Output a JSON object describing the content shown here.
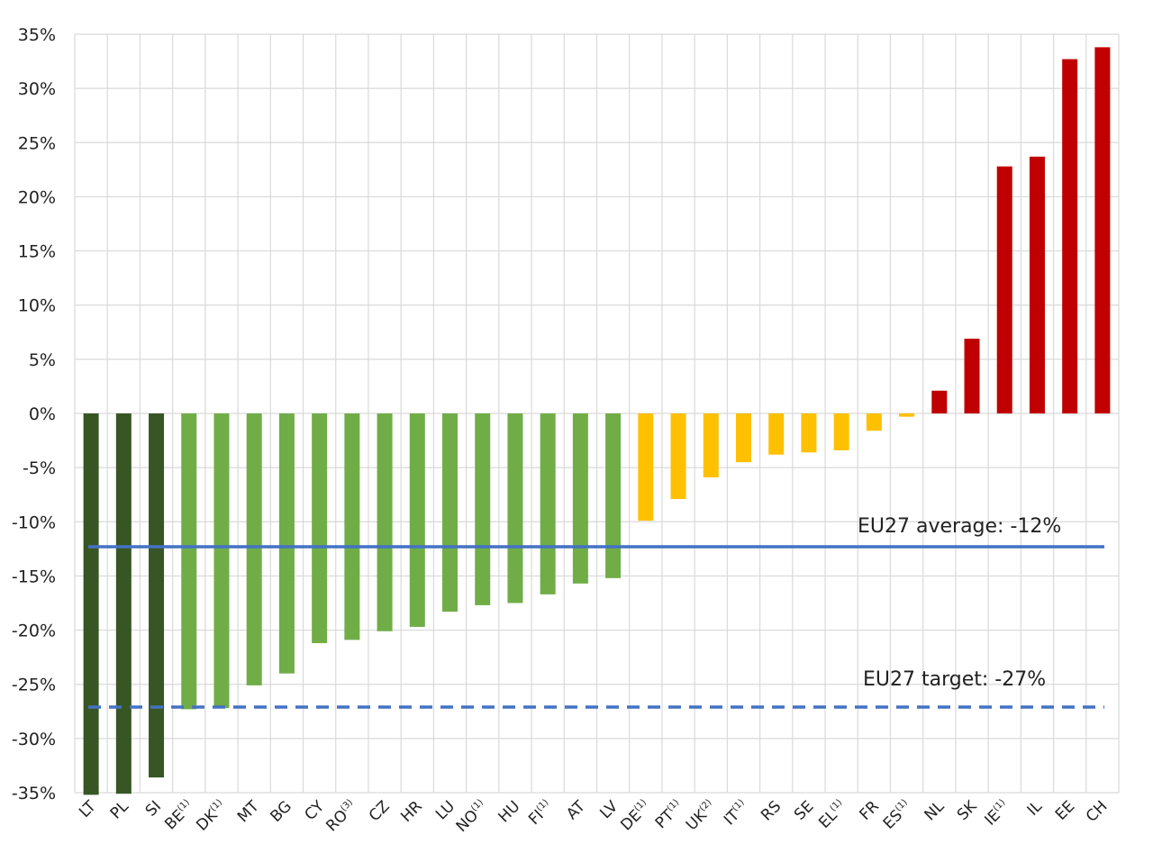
{
  "chart_data": {
    "type": "bar",
    "title": "",
    "xlabel": "",
    "ylabel": "",
    "ylim": [
      -35,
      35
    ],
    "y_ticks": [
      35,
      30,
      25,
      20,
      15,
      10,
      5,
      0,
      -5,
      -10,
      -15,
      -20,
      -25,
      -30,
      -35
    ],
    "y_tick_labels": [
      "35%",
      "30%",
      "25%",
      "20%",
      "15%",
      "10%",
      "5%",
      "0%",
      "-5%",
      "-10%",
      "-15%",
      "-20%",
      "-25%",
      "-30%",
      "-35%"
    ],
    "grid": true,
    "categories": [
      {
        "code": "LT",
        "sup": ""
      },
      {
        "code": "PL",
        "sup": ""
      },
      {
        "code": "SI",
        "sup": ""
      },
      {
        "code": "BE",
        "sup": "(1)"
      },
      {
        "code": "DK",
        "sup": "(1)"
      },
      {
        "code": "MT",
        "sup": ""
      },
      {
        "code": "BG",
        "sup": ""
      },
      {
        "code": "CY",
        "sup": ""
      },
      {
        "code": "RO",
        "sup": "(3)"
      },
      {
        "code": "CZ",
        "sup": ""
      },
      {
        "code": "HR",
        "sup": ""
      },
      {
        "code": "LU",
        "sup": ""
      },
      {
        "code": "NO",
        "sup": "(1)"
      },
      {
        "code": "HU",
        "sup": ""
      },
      {
        "code": "FI",
        "sup": "(1)"
      },
      {
        "code": "AT",
        "sup": ""
      },
      {
        "code": "LV",
        "sup": ""
      },
      {
        "code": "DE",
        "sup": "(1)"
      },
      {
        "code": "PT",
        "sup": "(1)"
      },
      {
        "code": "UK",
        "sup": "(2)"
      },
      {
        "code": "IT",
        "sup": "(1)"
      },
      {
        "code": "RS",
        "sup": ""
      },
      {
        "code": "SE",
        "sup": ""
      },
      {
        "code": "EL",
        "sup": "(1)"
      },
      {
        "code": "FR",
        "sup": ""
      },
      {
        "code": "ES",
        "sup": "(1)"
      },
      {
        "code": "NL",
        "sup": ""
      },
      {
        "code": "SK",
        "sup": ""
      },
      {
        "code": "IE",
        "sup": "(1)"
      },
      {
        "code": "IL",
        "sup": ""
      },
      {
        "code": "EE",
        "sup": ""
      },
      {
        "code": "CH",
        "sup": ""
      }
    ],
    "values": [
      -35.2,
      -35.1,
      -33.6,
      -27.3,
      -27.2,
      -25.1,
      -24.0,
      -21.2,
      -20.9,
      -20.1,
      -19.7,
      -18.3,
      -17.7,
      -17.5,
      -16.7,
      -15.7,
      -15.2,
      -9.9,
      -7.9,
      -5.9,
      -4.5,
      -3.8,
      -3.6,
      -3.4,
      -1.6,
      -0.3,
      2.1,
      6.9,
      22.8,
      23.7,
      32.7,
      33.8
    ],
    "bar_colors": [
      "#375623",
      "#375623",
      "#375623",
      "#70ad47",
      "#70ad47",
      "#70ad47",
      "#70ad47",
      "#70ad47",
      "#70ad47",
      "#70ad47",
      "#70ad47",
      "#70ad47",
      "#70ad47",
      "#70ad47",
      "#70ad47",
      "#70ad47",
      "#70ad47",
      "#ffc000",
      "#ffc000",
      "#ffc000",
      "#ffc000",
      "#ffc000",
      "#ffc000",
      "#ffc000",
      "#ffc000",
      "#ffc000",
      "#c00000",
      "#c00000",
      "#c00000",
      "#c00000",
      "#c00000",
      "#c00000"
    ],
    "reference_lines": [
      {
        "label": "EU27 average: -12%",
        "value": -12.3,
        "style": "solid",
        "color": "#4472c4"
      },
      {
        "label": "EU27 target: -27%",
        "value": -27.1,
        "style": "dashed",
        "color": "#4472c4"
      }
    ]
  }
}
